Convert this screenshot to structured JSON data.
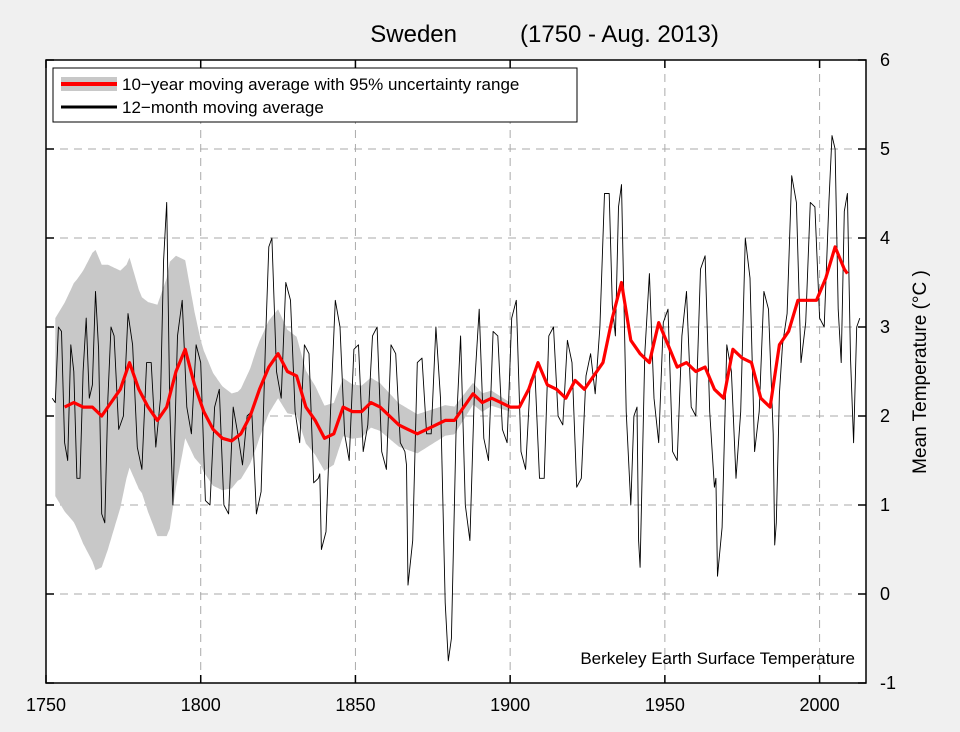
{
  "chart_data": {
    "type": "line",
    "title": "Sweden",
    "subtitle": "(1750 - Aug. 2013)",
    "xlabel": "",
    "ylabel": "Mean Temperature (°C )",
    "xlim": [
      1750,
      2015
    ],
    "ylim": [
      -1,
      6
    ],
    "x_ticks": [
      1750,
      1800,
      1850,
      1900,
      1950,
      2000
    ],
    "y_ticks": [
      -1,
      0,
      1,
      2,
      3,
      4,
      5,
      6
    ],
    "grid": true,
    "legend_position": "top-left",
    "credit": "Berkeley Earth Surface Temperature",
    "series": [
      {
        "name": "10−year moving average with 95% uncertainty range",
        "kind": "smoothed",
        "color": "#ff0000",
        "band_color": "#c8c8c8",
        "x": [
          1756,
          1759,
          1762,
          1765,
          1768,
          1771,
          1774,
          1777,
          1780,
          1783,
          1786,
          1789,
          1792,
          1795,
          1798,
          1801,
          1804,
          1807,
          1810,
          1813,
          1816,
          1819,
          1822,
          1825,
          1828,
          1831,
          1834,
          1837,
          1840,
          1843,
          1846,
          1849,
          1852,
          1855,
          1858,
          1861,
          1864,
          1867,
          1870,
          1873,
          1876,
          1879,
          1882,
          1885,
          1888,
          1891,
          1894,
          1897,
          1900,
          1903,
          1906,
          1909,
          1912,
          1915,
          1918,
          1921,
          1924,
          1927,
          1930,
          1933,
          1936,
          1939,
          1942,
          1945,
          1948,
          1951,
          1954,
          1957,
          1960,
          1963,
          1966,
          1969,
          1972,
          1975,
          1978,
          1981,
          1984,
          1987,
          1990,
          1993,
          1996,
          1999,
          2002,
          2005,
          2008,
          2009
        ],
        "y": [
          2.1,
          2.15,
          2.1,
          2.1,
          2.0,
          2.15,
          2.3,
          2.6,
          2.3,
          2.1,
          1.95,
          2.1,
          2.5,
          2.75,
          2.35,
          2.05,
          1.85,
          1.75,
          1.72,
          1.8,
          2.0,
          2.3,
          2.55,
          2.7,
          2.5,
          2.45,
          2.1,
          1.95,
          1.75,
          1.8,
          2.1,
          2.05,
          2.05,
          2.15,
          2.1,
          2.0,
          1.9,
          1.85,
          1.8,
          1.85,
          1.9,
          1.95,
          1.95,
          2.1,
          2.25,
          2.15,
          2.2,
          2.15,
          2.1,
          2.1,
          2.3,
          2.6,
          2.35,
          2.3,
          2.2,
          2.4,
          2.3,
          2.45,
          2.6,
          3.1,
          3.5,
          2.85,
          2.7,
          2.6,
          3.05,
          2.8,
          2.55,
          2.6,
          2.5,
          2.55,
          2.3,
          2.2,
          2.75,
          2.65,
          2.6,
          2.2,
          2.1,
          2.8,
          2.95,
          3.3,
          3.3,
          3.3,
          3.55,
          3.9,
          3.65,
          3.6
        ],
        "uncertainty_x": [
          1753,
          1760,
          1766,
          1770,
          1776,
          1781,
          1786,
          1790,
          1795,
          1800,
          1806,
          1812,
          1818,
          1825,
          1835,
          1850,
          1870,
          1885,
          1900
        ],
        "uncertainty_width": [
          1.0,
          1.4,
          1.8,
          1.6,
          1.2,
          1.1,
          1.3,
          1.5,
          1.0,
          0.7,
          0.6,
          0.5,
          0.55,
          0.5,
          0.4,
          0.3,
          0.22,
          0.14,
          0.05
        ]
      },
      {
        "name": "12−month moving average",
        "kind": "noisy",
        "color": "#000000",
        "x": [
          1752,
          1754,
          1756,
          1758,
          1760,
          1762,
          1764,
          1766,
          1768,
          1770,
          1772,
          1775,
          1778,
          1781,
          1784,
          1787,
          1789,
          1791,
          1794,
          1797,
          1800,
          1803,
          1806,
          1809,
          1812,
          1815,
          1818,
          1821,
          1823,
          1826,
          1829,
          1832,
          1835,
          1838,
          1839,
          1842,
          1845,
          1848,
          1851,
          1854,
          1857,
          1860,
          1863,
          1866,
          1867,
          1870,
          1873,
          1876,
          1879,
          1881,
          1884,
          1887,
          1890,
          1893,
          1896,
          1899,
          1902,
          1905,
          1908,
          1911,
          1914,
          1917,
          1920,
          1923,
          1926,
          1929,
          1932,
          1934,
          1936,
          1939,
          1941,
          1942,
          1945,
          1948,
          1951,
          1954,
          1957,
          1960,
          1963,
          1966,
          1967,
          1970,
          1973,
          1976,
          1979,
          1982,
          1985,
          1986,
          1988,
          1991,
          1994,
          1997,
          2000,
          2003,
          2005,
          2007,
          2009,
          2011,
          2013
        ],
        "y": [
          2.2,
          3.0,
          1.7,
          2.8,
          1.3,
          2.5,
          2.2,
          3.4,
          0.9,
          2.2,
          2.9,
          2.0,
          2.8,
          1.4,
          2.6,
          2.2,
          4.4,
          1.0,
          3.3,
          1.8,
          2.6,
          1.0,
          2.3,
          0.9,
          1.8,
          2.0,
          0.9,
          2.9,
          4.0,
          2.2,
          3.3,
          1.7,
          2.7,
          1.3,
          0.5,
          2.1,
          3.0,
          1.5,
          2.8,
          1.9,
          3.0,
          1.4,
          2.7,
          1.6,
          0.1,
          2.6,
          1.8,
          3.0,
          -0.1,
          -0.5,
          2.9,
          0.6,
          3.2,
          1.5,
          2.9,
          1.7,
          3.3,
          1.4,
          2.5,
          1.3,
          3.0,
          1.9,
          2.6,
          1.3,
          2.7,
          3.0,
          4.5,
          2.9,
          4.6,
          1.0,
          2.1,
          0.3,
          3.6,
          1.7,
          3.2,
          1.5,
          3.4,
          2.0,
          3.8,
          1.2,
          0.2,
          2.8,
          1.3,
          4.0,
          1.6,
          3.4,
          1.8,
          0.8,
          2.8,
          4.7,
          2.6,
          4.4,
          3.1,
          4.4,
          5.0,
          2.6,
          4.5,
          1.7,
          3.1
        ]
      }
    ]
  }
}
